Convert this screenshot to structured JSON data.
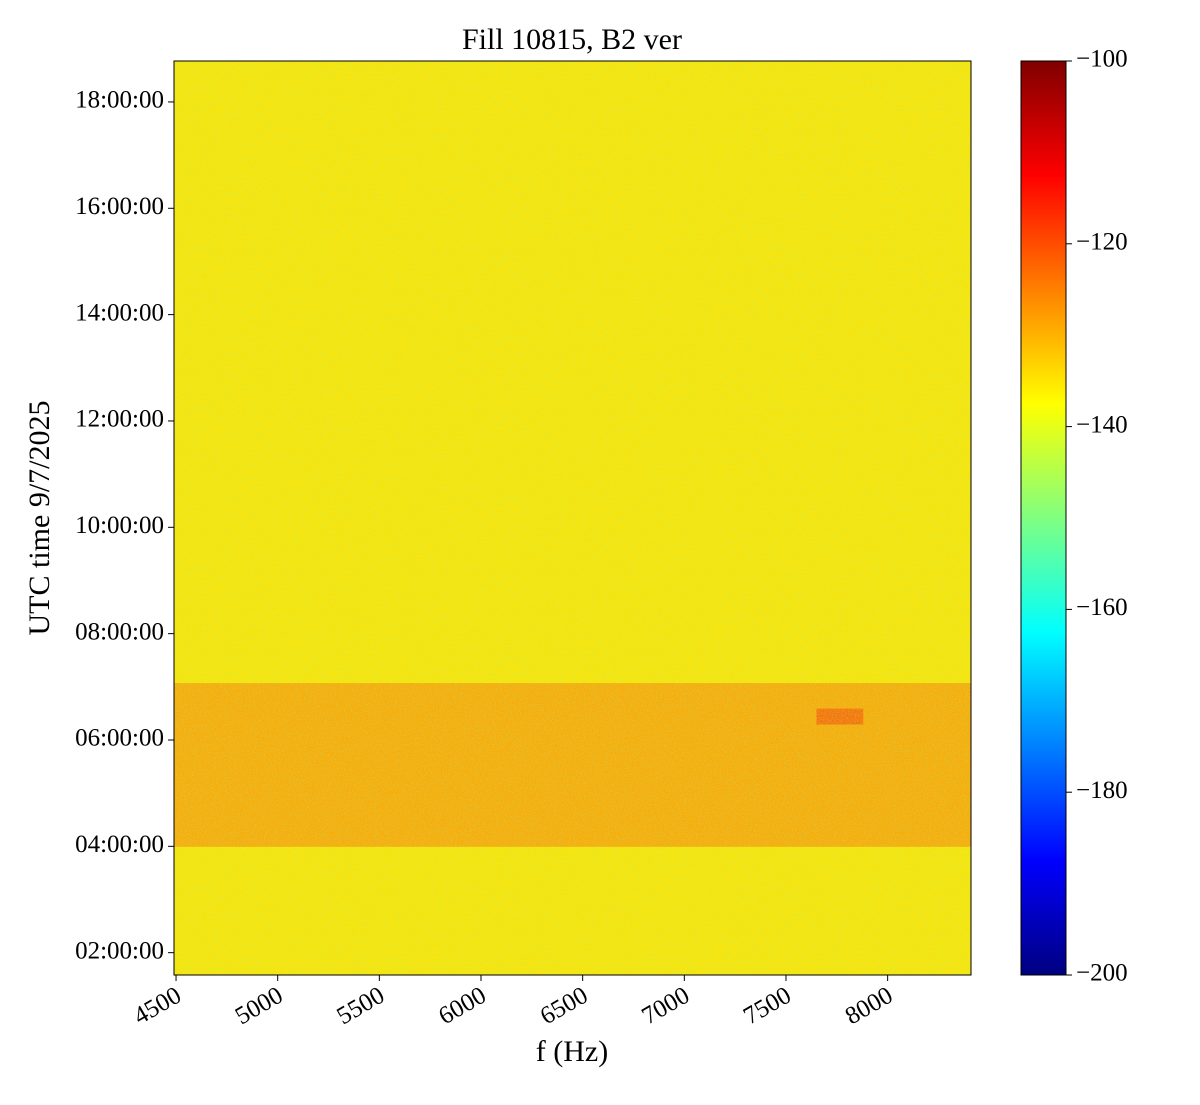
{
  "chart_data": {
    "type": "heatmap",
    "title": "Fill 10815, B2 ver",
    "xlabel": "f (Hz)",
    "ylabel": "UTC time 9/7/2025",
    "x_edges": [
      4490,
      7650,
      7880,
      8410
    ],
    "y_edges": [
      1.58,
      4.0,
      6.3,
      6.6,
      7.08,
      18.77
    ],
    "z": [
      [
        -135,
        -135,
        -135
      ],
      [
        -129,
        -129,
        -129
      ],
      [
        -129,
        -123,
        -129
      ],
      [
        -129,
        -129,
        -129
      ],
      [
        -135,
        -135,
        -135
      ]
    ],
    "colormap": "jet",
    "xlim": [
      4490,
      8410
    ],
    "ylim": [
      1.58,
      18.77
    ],
    "xticks": [
      4500,
      5000,
      5500,
      6000,
      6500,
      7000,
      7500,
      8000
    ],
    "yticks": [
      {
        "value": 2,
        "label": "02:00:00"
      },
      {
        "value": 4,
        "label": "04:00:00"
      },
      {
        "value": 6,
        "label": "06:00:00"
      },
      {
        "value": 8,
        "label": "08:00:00"
      },
      {
        "value": 10,
        "label": "10:00:00"
      },
      {
        "value": 12,
        "label": "12:00:00"
      },
      {
        "value": 14,
        "label": "14:00:00"
      },
      {
        "value": 16,
        "label": "16:00:00"
      },
      {
        "value": 18,
        "label": "18:00:00"
      }
    ],
    "clim": [
      -200,
      -100
    ],
    "cticks": [
      {
        "value": -200,
        "label": "−200"
      },
      {
        "value": -180,
        "label": "−180"
      },
      {
        "value": -160,
        "label": "−160"
      },
      {
        "value": -140,
        "label": "−140"
      },
      {
        "value": -120,
        "label": "−120"
      },
      {
        "value": -100,
        "label": "−100"
      }
    ]
  }
}
